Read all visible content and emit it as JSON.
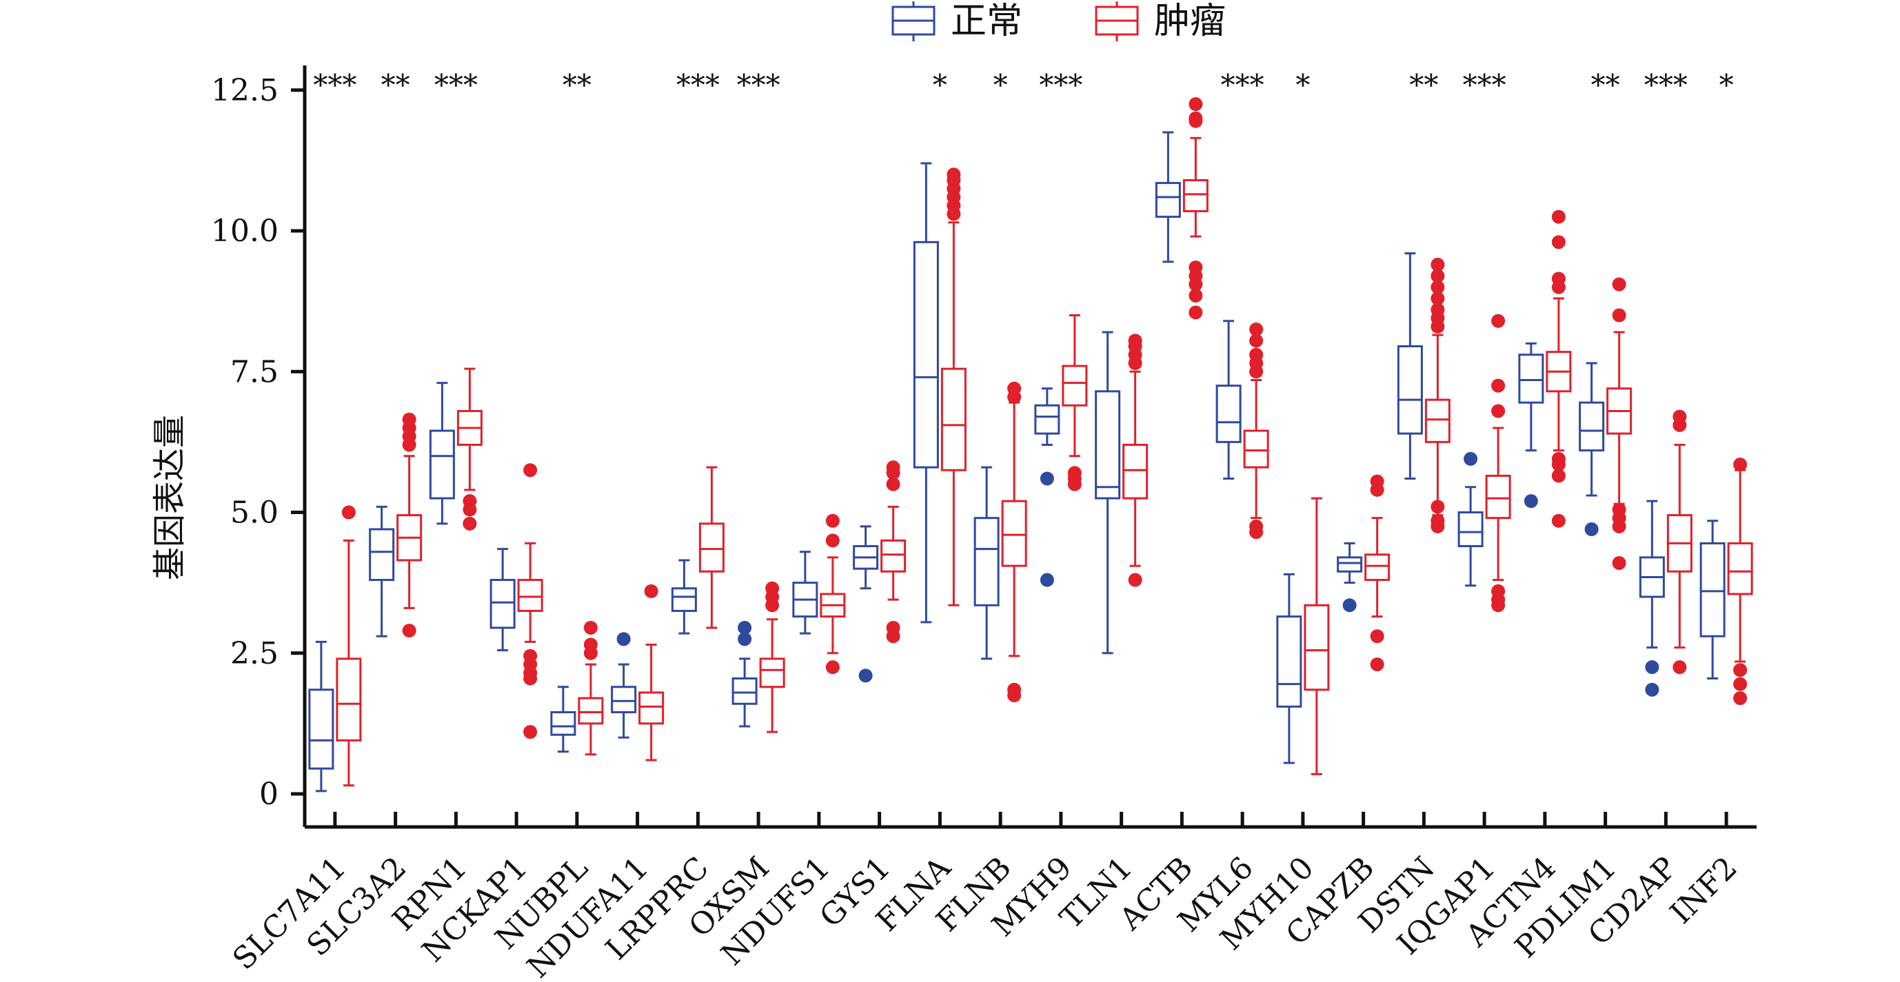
{
  "chart_data": {
    "type": "box",
    "title": "",
    "xlabel": "",
    "ylabel": "基因表达量",
    "ylim": [
      -0.5,
      13
    ],
    "yticks": [
      0,
      2.5,
      5,
      7.5,
      10,
      12.5
    ],
    "ytick_labels": [
      "0",
      "2.5",
      "5.0",
      "7.5",
      "10.0",
      "12.5"
    ],
    "legend_position": "top-center",
    "categories": [
      "SLC7A11",
      "SLC3A2",
      "RPN1",
      "NCKAP1",
      "NUBPL",
      "NDUFA11",
      "LRPPRC",
      "OXSM",
      "NDUFS1",
      "GYS1",
      "FLNA",
      "FLNB",
      "MYH9",
      "TLN1",
      "ACTB",
      "MYL6",
      "MYH10",
      "CAPZB",
      "DSTN",
      "IQGAP1",
      "ACTN4",
      "PDLIM1",
      "CD2AP",
      "INF2"
    ],
    "significance": [
      "***",
      "**",
      "***",
      "",
      "**",
      "",
      "***",
      "***",
      "",
      "",
      "*",
      "*",
      "***",
      "",
      "",
      "***",
      "*",
      "",
      "**",
      "***",
      "",
      "**",
      "***",
      "*"
    ],
    "series": [
      {
        "name": "正常",
        "color": "#2e4a9e",
        "boxes": [
          {
            "whislo": 0.05,
            "q1": 0.45,
            "med": 0.95,
            "q3": 1.85,
            "whishi": 2.7,
            "fliers": []
          },
          {
            "whislo": 2.8,
            "q1": 3.8,
            "med": 4.3,
            "q3": 4.7,
            "whishi": 5.1,
            "fliers": []
          },
          {
            "whislo": 4.8,
            "q1": 5.25,
            "med": 6.0,
            "q3": 6.45,
            "whishi": 7.3,
            "fliers": []
          },
          {
            "whislo": 2.55,
            "q1": 2.95,
            "med": 3.4,
            "q3": 3.8,
            "whishi": 4.35,
            "fliers": []
          },
          {
            "whislo": 0.75,
            "q1": 1.05,
            "med": 1.2,
            "q3": 1.45,
            "whishi": 1.9,
            "fliers": []
          },
          {
            "whislo": 1.0,
            "q1": 1.45,
            "med": 1.65,
            "q3": 1.9,
            "whishi": 2.3,
            "fliers": [
              2.75
            ]
          },
          {
            "whislo": 2.85,
            "q1": 3.25,
            "med": 3.5,
            "q3": 3.65,
            "whishi": 4.15,
            "fliers": []
          },
          {
            "whislo": 1.2,
            "q1": 1.6,
            "med": 1.8,
            "q3": 2.05,
            "whishi": 2.4,
            "fliers": [
              2.75,
              2.95
            ]
          },
          {
            "whislo": 2.85,
            "q1": 3.15,
            "med": 3.45,
            "q3": 3.75,
            "whishi": 4.3,
            "fliers": []
          },
          {
            "whislo": 3.65,
            "q1": 4.0,
            "med": 4.2,
            "q3": 4.4,
            "whishi": 4.75,
            "fliers": [
              2.1
            ]
          },
          {
            "whislo": 3.05,
            "q1": 5.8,
            "med": 7.4,
            "q3": 9.8,
            "whishi": 11.2,
            "fliers": []
          },
          {
            "whislo": 2.4,
            "q1": 3.35,
            "med": 4.35,
            "q3": 4.9,
            "whishi": 5.8,
            "fliers": []
          },
          {
            "whislo": 6.2,
            "q1": 6.4,
            "med": 6.7,
            "q3": 6.9,
            "whishi": 7.2,
            "fliers": [
              5.6,
              3.8
            ]
          },
          {
            "whislo": 2.5,
            "q1": 5.25,
            "med": 5.45,
            "q3": 7.15,
            "whishi": 8.2,
            "fliers": []
          },
          {
            "whislo": 9.45,
            "q1": 10.25,
            "med": 10.6,
            "q3": 10.85,
            "whishi": 11.75,
            "fliers": []
          },
          {
            "whislo": 5.6,
            "q1": 6.25,
            "med": 6.6,
            "q3": 7.25,
            "whishi": 8.4,
            "fliers": []
          },
          {
            "whislo": 0.55,
            "q1": 1.55,
            "med": 1.95,
            "q3": 3.15,
            "whishi": 3.9,
            "fliers": []
          },
          {
            "whislo": 3.75,
            "q1": 3.95,
            "med": 4.1,
            "q3": 4.2,
            "whishi": 4.45,
            "fliers": [
              3.35
            ]
          },
          {
            "whislo": 5.6,
            "q1": 6.4,
            "med": 7.0,
            "q3": 7.95,
            "whishi": 9.6,
            "fliers": []
          },
          {
            "whislo": 3.7,
            "q1": 4.4,
            "med": 4.65,
            "q3": 5.0,
            "whishi": 5.45,
            "fliers": [
              5.95
            ]
          },
          {
            "whislo": 6.1,
            "q1": 6.95,
            "med": 7.35,
            "q3": 7.8,
            "whishi": 8.0,
            "fliers": [
              5.2
            ]
          },
          {
            "whislo": 5.3,
            "q1": 6.1,
            "med": 6.45,
            "q3": 6.95,
            "whishi": 7.65,
            "fliers": [
              4.7
            ]
          },
          {
            "whislo": 2.6,
            "q1": 3.5,
            "med": 3.85,
            "q3": 4.2,
            "whishi": 5.2,
            "fliers": [
              2.25,
              1.85
            ]
          },
          {
            "whislo": 2.05,
            "q1": 2.8,
            "med": 3.6,
            "q3": 4.45,
            "whishi": 4.85,
            "fliers": []
          }
        ]
      },
      {
        "name": "肿瘤",
        "color": "#e0202a",
        "boxes": [
          {
            "whislo": 0.15,
            "q1": 0.95,
            "med": 1.6,
            "q3": 2.4,
            "whishi": 4.5,
            "fliers": [
              5.0
            ]
          },
          {
            "whislo": 3.3,
            "q1": 4.15,
            "med": 4.55,
            "q3": 4.95,
            "whishi": 6.0,
            "fliers": [
              2.9,
              6.2,
              6.35,
              6.5,
              6.65
            ]
          },
          {
            "whislo": 5.4,
            "q1": 6.2,
            "med": 6.5,
            "q3": 6.8,
            "whishi": 7.55,
            "fliers": [
              4.8,
              5.05,
              5.2
            ]
          },
          {
            "whislo": 2.7,
            "q1": 3.25,
            "med": 3.5,
            "q3": 3.8,
            "whishi": 4.45,
            "fliers": [
              5.75,
              2.45,
              2.3,
              2.15,
              2.05,
              1.1
            ]
          },
          {
            "whislo": 0.7,
            "q1": 1.25,
            "med": 1.45,
            "q3": 1.7,
            "whishi": 2.3,
            "fliers": [
              2.5,
              2.65,
              2.95
            ]
          },
          {
            "whislo": 0.6,
            "q1": 1.25,
            "med": 1.55,
            "q3": 1.8,
            "whishi": 2.65,
            "fliers": [
              3.6
            ]
          },
          {
            "whislo": 2.95,
            "q1": 3.95,
            "med": 4.35,
            "q3": 4.8,
            "whishi": 5.8,
            "fliers": []
          },
          {
            "whislo": 1.1,
            "q1": 1.9,
            "med": 2.2,
            "q3": 2.4,
            "whishi": 3.1,
            "fliers": [
              3.35,
              3.5,
              3.65
            ]
          },
          {
            "whislo": 2.5,
            "q1": 3.15,
            "med": 3.35,
            "q3": 3.55,
            "whishi": 4.2,
            "fliers": [
              2.25,
              4.5,
              4.85
            ]
          },
          {
            "whislo": 3.45,
            "q1": 3.95,
            "med": 4.25,
            "q3": 4.5,
            "whishi": 5.1,
            "fliers": [
              2.8,
              2.95,
              5.5,
              5.7,
              5.8
            ]
          },
          {
            "whislo": 3.35,
            "q1": 5.75,
            "med": 6.55,
            "q3": 7.55,
            "whishi": 10.15,
            "fliers": [
              10.3,
              10.45,
              10.6,
              10.75,
              10.9,
              11.0
            ]
          },
          {
            "whislo": 2.45,
            "q1": 4.05,
            "med": 4.6,
            "q3": 5.2,
            "whishi": 6.95,
            "fliers": [
              7.05,
              7.2,
              1.85,
              1.75
            ]
          },
          {
            "whislo": 6.0,
            "q1": 6.9,
            "med": 7.3,
            "q3": 7.6,
            "whishi": 8.5,
            "fliers": [
              5.5,
              5.6,
              5.7
            ]
          },
          {
            "whislo": 4.05,
            "q1": 5.25,
            "med": 5.75,
            "q3": 6.2,
            "whishi": 7.5,
            "fliers": [
              7.65,
              7.8,
              7.95,
              8.05,
              3.8
            ]
          },
          {
            "whislo": 9.9,
            "q1": 10.35,
            "med": 10.65,
            "q3": 10.9,
            "whishi": 11.65,
            "fliers": [
              8.55,
              8.85,
              9.05,
              9.2,
              9.35,
              11.95,
              12.0,
              12.25
            ]
          },
          {
            "whislo": 4.9,
            "q1": 5.8,
            "med": 6.1,
            "q3": 6.45,
            "whishi": 7.35,
            "fliers": [
              7.5,
              7.65,
              7.8,
              8.05,
              8.25,
              4.75,
              4.65
            ]
          },
          {
            "whislo": 0.35,
            "q1": 1.85,
            "med": 2.55,
            "q3": 3.35,
            "whishi": 5.25,
            "fliers": []
          },
          {
            "whislo": 3.15,
            "q1": 3.8,
            "med": 4.05,
            "q3": 4.25,
            "whishi": 4.9,
            "fliers": [
              5.4,
              5.55,
              2.8,
              2.3
            ]
          },
          {
            "whislo": 4.95,
            "q1": 6.25,
            "med": 6.65,
            "q3": 7.0,
            "whishi": 8.15,
            "fliers": [
              8.3,
              8.45,
              8.6,
              8.8,
              9.0,
              9.2,
              9.4,
              5.1,
              4.85,
              4.75
            ]
          },
          {
            "whislo": 3.8,
            "q1": 4.9,
            "med": 5.25,
            "q3": 5.65,
            "whishi": 6.5,
            "fliers": [
              6.8,
              7.25,
              8.4,
              3.6,
              3.45,
              3.35
            ]
          },
          {
            "whislo": 6.1,
            "q1": 7.15,
            "med": 7.5,
            "q3": 7.85,
            "whishi": 8.8,
            "fliers": [
              9.0,
              9.15,
              9.8,
              10.25,
              5.85,
              5.65,
              5.95,
              4.85
            ]
          },
          {
            "whislo": 5.15,
            "q1": 6.4,
            "med": 6.8,
            "q3": 7.2,
            "whishi": 8.2,
            "fliers": [
              8.5,
              9.05,
              5.05,
              4.9,
              4.75,
              4.1
            ]
          },
          {
            "whislo": 2.6,
            "q1": 3.95,
            "med": 4.45,
            "q3": 4.95,
            "whishi": 6.2,
            "fliers": [
              6.55,
              6.7,
              2.25
            ]
          },
          {
            "whislo": 2.35,
            "q1": 3.55,
            "med": 3.95,
            "q3": 4.45,
            "whishi": 5.75,
            "fliers": [
              5.85,
              2.2,
              1.95,
              1.7
            ]
          }
        ]
      }
    ]
  }
}
